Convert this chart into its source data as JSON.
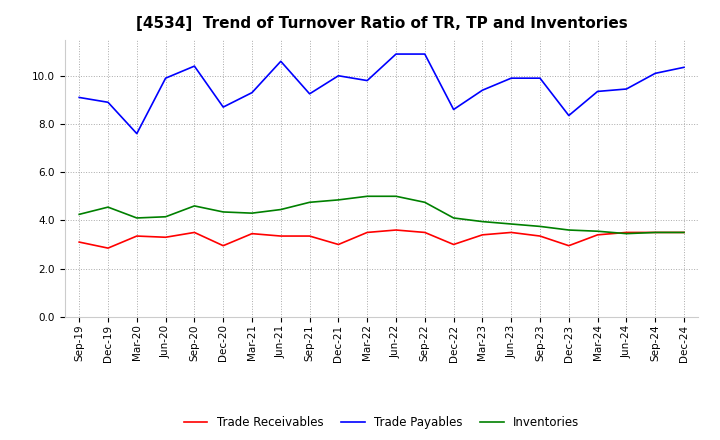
{
  "title": "[4534]  Trend of Turnover Ratio of TR, TP and Inventories",
  "x_labels": [
    "Sep-19",
    "Dec-19",
    "Mar-20",
    "Jun-20",
    "Sep-20",
    "Dec-20",
    "Mar-21",
    "Jun-21",
    "Sep-21",
    "Dec-21",
    "Mar-22",
    "Jun-22",
    "Sep-22",
    "Dec-22",
    "Mar-23",
    "Jun-23",
    "Sep-23",
    "Dec-23",
    "Mar-24",
    "Jun-24",
    "Sep-24",
    "Dec-24"
  ],
  "trade_receivables": [
    3.1,
    2.85,
    3.35,
    3.3,
    3.5,
    2.95,
    3.45,
    3.35,
    3.35,
    3.0,
    3.5,
    3.6,
    3.5,
    3.0,
    3.4,
    3.5,
    3.35,
    2.95,
    3.4,
    3.5,
    3.5,
    3.5
  ],
  "trade_payables": [
    9.1,
    8.9,
    7.6,
    9.9,
    10.4,
    8.7,
    9.3,
    10.6,
    9.25,
    10.0,
    9.8,
    10.9,
    10.9,
    8.6,
    9.4,
    9.9,
    9.9,
    8.35,
    9.35,
    9.45,
    10.1,
    10.35
  ],
  "inventories": [
    4.25,
    4.55,
    4.1,
    4.15,
    4.6,
    4.35,
    4.3,
    4.45,
    4.75,
    4.85,
    5.0,
    5.0,
    4.75,
    4.1,
    3.95,
    3.85,
    3.75,
    3.6,
    3.55,
    3.45,
    3.5,
    3.5
  ],
  "ylim": [
    0,
    11.5
  ],
  "yticks": [
    0.0,
    2.0,
    4.0,
    6.0,
    8.0,
    10.0
  ],
  "color_tr": "#ff0000",
  "color_tp": "#0000ff",
  "color_inv": "#008000",
  "bg_color": "#ffffff",
  "grid_color": "#aaaaaa",
  "title_fontsize": 11,
  "tick_fontsize": 7.5,
  "legend_fontsize": 8.5,
  "legend_labels": [
    "Trade Receivables",
    "Trade Payables",
    "Inventories"
  ]
}
